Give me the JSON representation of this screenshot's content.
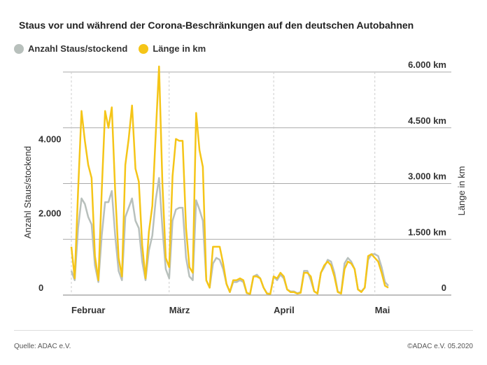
{
  "header": {
    "title": "Staus vor und während der Corona-Beschränkungen auf den deutschen Autobahnen"
  },
  "legend": {
    "items": [
      {
        "label": "Anzahl Staus/stockend",
        "color": "#b8c0bc"
      },
      {
        "label": "Länge in km",
        "color": "#f5c518"
      }
    ]
  },
  "footer": {
    "source": "Quelle: ADAC e.V.",
    "copyright": "©ADAC e.V.  05.2020"
  },
  "chart_data": {
    "type": "line",
    "ylabel_left": "Anzahl Staus/stockend",
    "ylabel_right": "Länge in km",
    "left_axis": {
      "ylim": [
        0,
        6000
      ],
      "ticks": [
        0,
        2000,
        4000
      ],
      "tick_labels": [
        "0",
        "2.000",
        "4.000"
      ]
    },
    "right_axis": {
      "ylim": [
        0,
        6000
      ],
      "ticks": [
        0,
        1500,
        3000,
        4500,
        6000
      ],
      "tick_labels": [
        "0",
        "1.500 km",
        "3.000 km",
        "4.500 km",
        "6.000 km"
      ]
    },
    "x_labels": [
      {
        "label": "Februar",
        "index": 0
      },
      {
        "label": "März",
        "index": 29
      },
      {
        "label": "April",
        "index": 60
      },
      {
        "label": "Mai",
        "index": 90
      }
    ],
    "series": [
      {
        "name": "Anzahl Staus/stockend",
        "color": "#b8c0bc",
        "axis": "left",
        "values": [
          650,
          400,
          1800,
          2600,
          2450,
          2100,
          1900,
          800,
          350,
          1600,
          2500,
          2500,
          2800,
          1600,
          650,
          400,
          2100,
          2350,
          2600,
          2000,
          1800,
          900,
          400,
          1200,
          1600,
          2550,
          3150,
          1800,
          700,
          450,
          2000,
          2300,
          2350,
          2350,
          1000,
          500,
          400,
          2550,
          2300,
          2000,
          400,
          200,
          850,
          1000,
          950,
          700,
          300,
          80,
          350,
          350,
          400,
          350,
          50,
          30,
          500,
          550,
          450,
          200,
          50,
          30,
          500,
          400,
          550,
          450,
          150,
          100,
          100,
          50,
          80,
          650,
          650,
          400,
          100,
          50,
          600,
          750,
          950,
          900,
          600,
          100,
          50,
          850,
          1000,
          900,
          700,
          150,
          100,
          200,
          950,
          1100,
          1100,
          1050,
          750,
          350,
          250
        ]
      },
      {
        "name": "Länge in km",
        "color": "#f5c518",
        "axis": "right",
        "values": [
          1300,
          450,
          2800,
          4950,
          4150,
          3500,
          3150,
          1050,
          400,
          2800,
          4950,
          4500,
          5050,
          2800,
          1000,
          500,
          3500,
          4200,
          5100,
          3400,
          3050,
          1350,
          450,
          1700,
          2400,
          4300,
          6150,
          3000,
          1000,
          750,
          3200,
          4200,
          4150,
          4150,
          1800,
          750,
          600,
          4900,
          3900,
          3450,
          400,
          200,
          1300,
          1300,
          1300,
          850,
          300,
          80,
          400,
          400,
          450,
          400,
          60,
          30,
          500,
          500,
          450,
          200,
          40,
          30,
          500,
          450,
          600,
          500,
          150,
          80,
          80,
          40,
          60,
          600,
          600,
          500,
          100,
          40,
          600,
          800,
          900,
          800,
          500,
          80,
          40,
          700,
          900,
          850,
          700,
          150,
          80,
          200,
          1050,
          1100,
          1000,
          900,
          600,
          250,
          200
        ]
      }
    ],
    "grid": true
  }
}
